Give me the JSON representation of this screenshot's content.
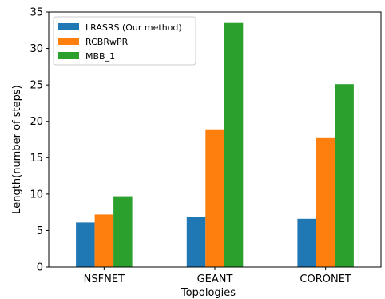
{
  "chart_data": {
    "type": "bar",
    "categories": [
      "NSFNET",
      "GEANT",
      "CORONET"
    ],
    "series": [
      {
        "name": "LRASRS (Our method)",
        "color": "#1f77b4",
        "values": [
          6.1,
          6.8,
          6.6
        ]
      },
      {
        "name": "RCBRwPR",
        "color": "#ff7f0e",
        "values": [
          7.2,
          18.9,
          17.8
        ]
      },
      {
        "name": "MBB_1",
        "color": "#2ca02c",
        "values": [
          9.7,
          33.5,
          25.1
        ]
      }
    ],
    "xlabel": "Topologies",
    "ylabel": "Length(number of steps)",
    "ylim": [
      0,
      35
    ],
    "yticks": [
      "0",
      "5",
      "10",
      "15",
      "20",
      "25",
      "30",
      "35"
    ],
    "grid": false,
    "legend_position": "top-left"
  }
}
